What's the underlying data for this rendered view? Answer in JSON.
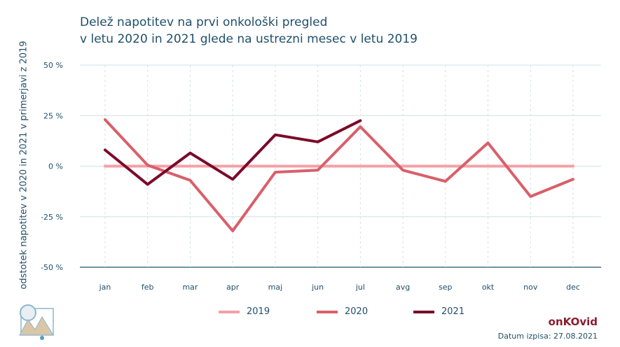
{
  "title_line1": "Delež napotitev na prvi onkološki pregled",
  "title_line2": "v letu 2020 in 2021 glede na ustrezni mesec v letu 2019",
  "brand": "onKOvid",
  "footnote": "Datum izpisa: 27.08.2021",
  "colors": {
    "text": "#1f4f6b",
    "grid": "#cfe1e8",
    "axis": "#1f4f6b"
  },
  "chart_data": {
    "type": "line",
    "title": "Delež napotitev na prvi onkološki pregled v letu 2020 in 2021 glede na ustrezni mesec v letu 2019",
    "xlabel": "",
    "ylabel": "odstotek napotitev v 2020 in 2021 v primerjavi z 2019",
    "categories": [
      "jan",
      "feb",
      "mar",
      "apr",
      "maj",
      "jun",
      "jul",
      "avg",
      "sep",
      "okt",
      "nov",
      "dec"
    ],
    "ylim": [
      -50,
      50
    ],
    "yticks": [
      -50,
      -25,
      0,
      25,
      50
    ],
    "ytick_labels": [
      "-50 %",
      "-25 %",
      "0 %",
      "25 %",
      "50 %"
    ],
    "grid": true,
    "legend_position": "bottom",
    "series": [
      {
        "name": "2019",
        "color": "#f4a0a6",
        "values": [
          0,
          0,
          0,
          0,
          0,
          0,
          0,
          0,
          0,
          0,
          0,
          0
        ]
      },
      {
        "name": "2020",
        "color": "#d95f6a",
        "values": [
          23,
          0.5,
          -7,
          -32,
          -3,
          -2,
          19.5,
          -2,
          -7.5,
          11.5,
          -15,
          -6.5
        ]
      },
      {
        "name": "2021",
        "color": "#7b0a2a",
        "values": [
          8,
          -9,
          6.5,
          -6.5,
          15.5,
          12,
          22.5,
          null,
          null,
          null,
          null,
          null
        ]
      }
    ]
  }
}
